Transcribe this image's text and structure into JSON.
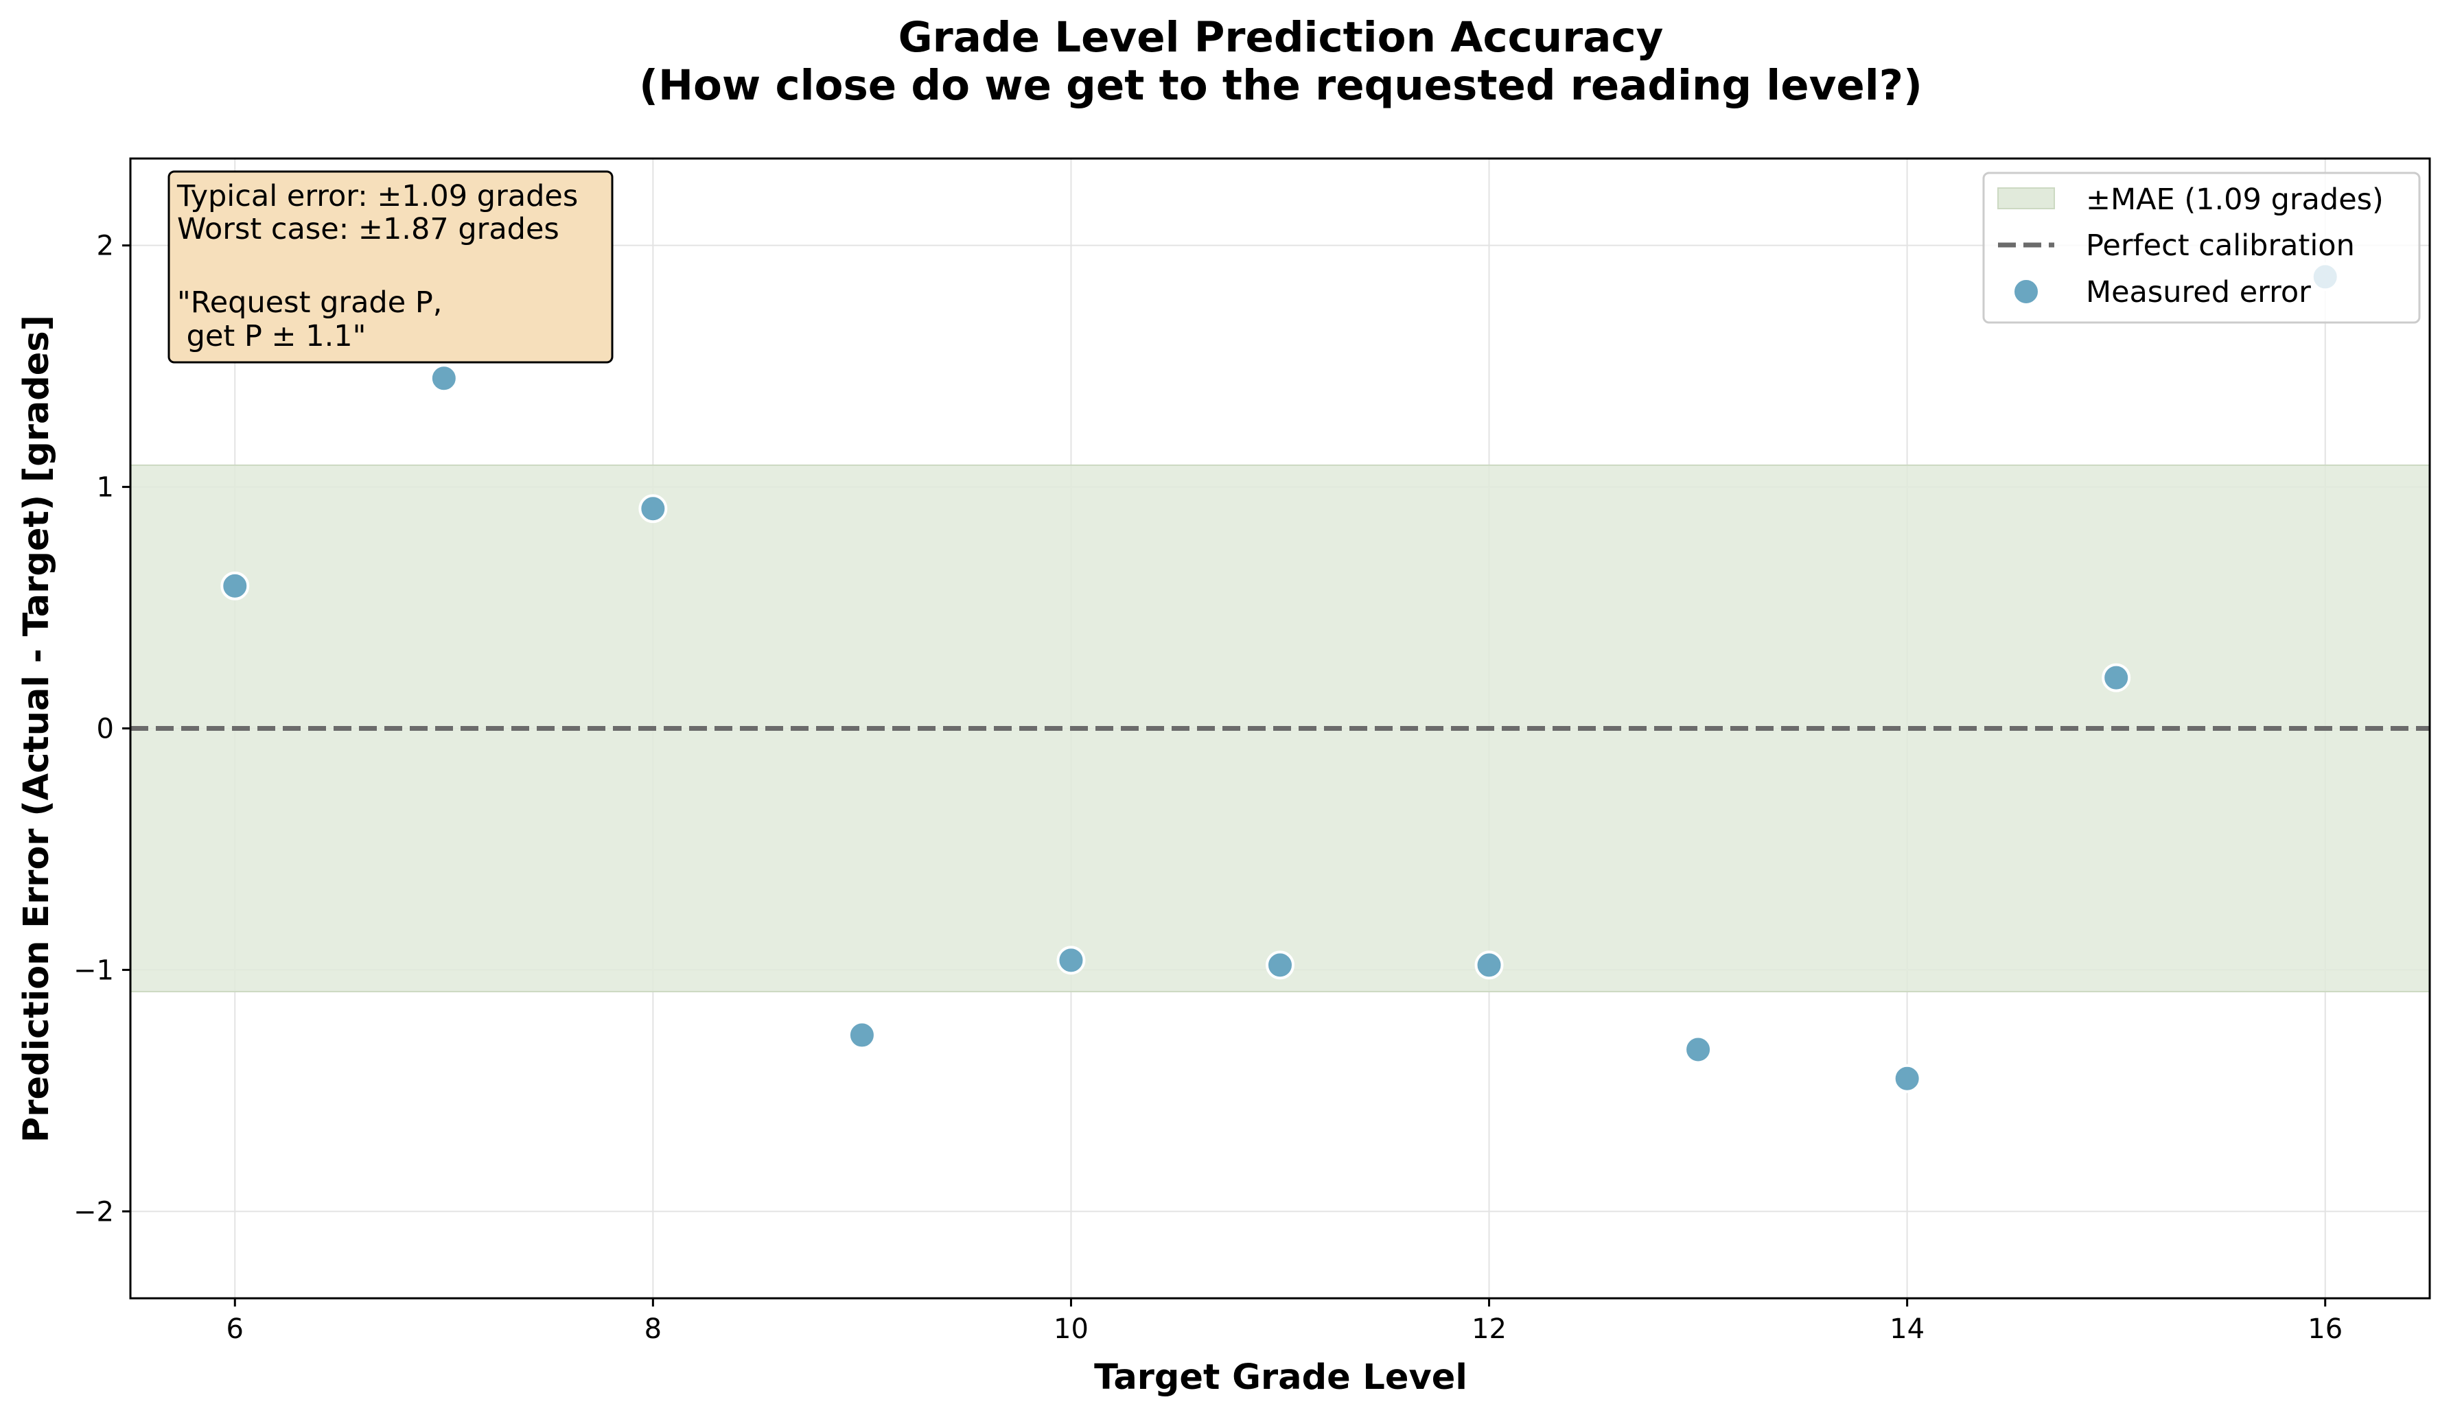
{
  "chart_data": {
    "type": "scatter",
    "title": "Grade Level Prediction Accuracy",
    "subtitle": "(How close do we get to the requested reading level?)",
    "xlabel": "Target Grade Level",
    "ylabel": "Prediction Error (Actual - Target) [grades]",
    "xlim": [
      5.5,
      16.5
    ],
    "ylim": [
      -2.36,
      2.36
    ],
    "xticks": [
      6,
      8,
      10,
      12,
      14,
      16
    ],
    "xtick_labels": [
      "6",
      "8",
      "10",
      "12",
      "14",
      "16"
    ],
    "yticks": [
      -2,
      -1,
      0,
      1,
      2
    ],
    "ytick_labels": [
      "−2",
      "−1",
      "0",
      "1",
      "2"
    ],
    "grid": true,
    "mae": 1.09,
    "series": [
      {
        "name": "Measured error",
        "x": [
          6,
          7,
          8,
          9,
          10,
          11,
          12,
          13,
          14,
          15,
          16
        ],
        "y": [
          0.59,
          1.45,
          0.91,
          -1.27,
          -0.96,
          -0.98,
          -0.98,
          -1.33,
          -1.45,
          0.21,
          1.87
        ]
      }
    ],
    "reference_line": {
      "name": "Perfect calibration",
      "y": 0
    },
    "band": {
      "name": "±MAE (1.09 grades)",
      "low": -1.09,
      "high": 1.09
    },
    "legend": {
      "placement": "upper right",
      "entries": [
        "±MAE (1.09 grades)",
        "Perfect calibration",
        "Measured error"
      ]
    },
    "annotation": {
      "lines": [
        "Typical error: ±1.09 grades",
        "Worst case: ±1.87 grades",
        "",
        "\"Request grade P,",
        " get P ± 1.1\""
      ]
    },
    "colors": {
      "point_fill": "#6aa6c1",
      "point_edge": "#ffffff",
      "band_fill": "#e1eadb",
      "band_edge": "#ccd9c2",
      "reference_line": "#6b6b6b",
      "annotation_fill": "#f6dfbb",
      "grid": "#e3e3e3"
    }
  }
}
